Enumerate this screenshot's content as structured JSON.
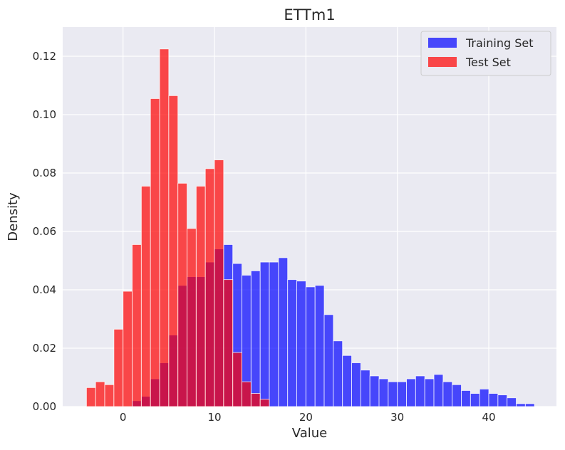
{
  "chart_data": {
    "type": "bar",
    "subtype": "histogram",
    "title": "ETTm1",
    "xlabel": "Value",
    "ylabel": "Density",
    "xlim": [
      -6.6,
      47.4
    ],
    "ylim": [
      0,
      0.13
    ],
    "xticks": [
      0,
      10,
      20,
      30,
      40
    ],
    "yticks": [
      0.0,
      0.02,
      0.04,
      0.06,
      0.08,
      0.1,
      0.12
    ],
    "ytick_labels": [
      "0.00",
      "0.02",
      "0.04",
      "0.06",
      "0.08",
      "0.10",
      "0.12"
    ],
    "grid": true,
    "legend_position": "top-right",
    "bin_width": 1,
    "series": [
      {
        "name": "Training Set",
        "color": "#0000ff",
        "opacity": 0.7,
        "bin_start": 1,
        "values": [
          0.002,
          0.0035,
          0.0095,
          0.015,
          0.0245,
          0.0415,
          0.0445,
          0.0445,
          0.0495,
          0.054,
          0.0555,
          0.049,
          0.045,
          0.0465,
          0.0495,
          0.0495,
          0.051,
          0.0435,
          0.043,
          0.041,
          0.0415,
          0.0315,
          0.0225,
          0.0175,
          0.015,
          0.0125,
          0.0105,
          0.0095,
          0.0085,
          0.0085,
          0.0095,
          0.0105,
          0.0095,
          0.011,
          0.0085,
          0.0075,
          0.0055,
          0.0045,
          0.006,
          0.0045,
          0.004,
          0.003,
          0.001,
          0.001
        ]
      },
      {
        "name": "Test Set",
        "color": "#ff0000",
        "opacity": 0.7,
        "bin_start": -4,
        "values": [
          0.0065,
          0.0085,
          0.0075,
          0.0265,
          0.0395,
          0.0555,
          0.0755,
          0.1055,
          0.1225,
          0.1065,
          0.0765,
          0.061,
          0.0755,
          0.0815,
          0.0845,
          0.0435,
          0.0185,
          0.0085,
          0.0045,
          0.0025
        ]
      }
    ]
  }
}
